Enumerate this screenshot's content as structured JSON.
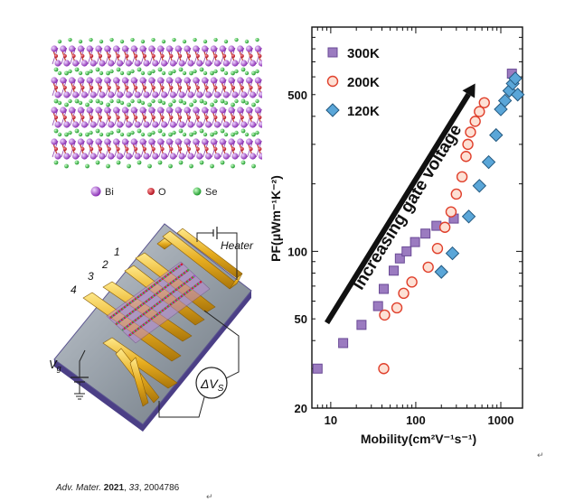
{
  "crystal_legend": [
    {
      "label": "Bi",
      "color": "#a64fc8"
    },
    {
      "label": "O",
      "color": "#cc2233"
    },
    {
      "label": "Se",
      "color": "#3cb044"
    }
  ],
  "device": {
    "heater_label": "Heater",
    "electrode_labels": [
      "1",
      "2",
      "3",
      "4"
    ],
    "gate_label": "V",
    "gate_sub": "g",
    "voltage_label": "ΔV",
    "voltage_sub": "S"
  },
  "citation": {
    "journal": "Adv. Mater.",
    "year": "2021",
    "volume": "33",
    "article": "2004786"
  },
  "paragraph_mark": "↵",
  "chart_data": {
    "type": "scatter",
    "xscale": "log",
    "yscale": "log",
    "xlim": [
      6,
      1800
    ],
    "ylim": [
      20,
      1000
    ],
    "xlabel": "Mobility(cm²V⁻¹s⁻¹)",
    "xtick_labels": [
      "10",
      "100",
      "1000"
    ],
    "xticks": [
      10,
      100,
      1000
    ],
    "ylabel": "PF(μWm⁻¹K⁻²)",
    "ytick_labels": [
      "20",
      "50",
      "100",
      "500"
    ],
    "yticks": [
      20,
      50,
      100,
      500
    ],
    "annotation": "Increasing gate voltage",
    "annotation_start": [
      9,
      48
    ],
    "annotation_end": [
      500,
      560
    ],
    "series": [
      {
        "name": "300K",
        "marker": "square",
        "color": "#9b7bc0",
        "edge": "#6a4a96",
        "x": [
          7,
          14,
          23,
          36,
          42,
          55,
          65,
          78,
          98,
          130,
          175,
          280,
          1350
        ],
        "y": [
          30,
          39,
          47,
          57,
          68,
          82,
          93,
          100,
          110,
          120,
          130,
          140,
          620
        ]
      },
      {
        "name": "200K",
        "marker": "circle",
        "color": "#fde1d5",
        "edge": "#e0402c",
        "x": [
          42,
          43,
          60,
          72,
          90,
          140,
          180,
          220,
          260,
          300,
          350,
          390,
          410,
          440,
          500,
          560,
          640
        ],
        "y": [
          30,
          52,
          56,
          65,
          73,
          85,
          103,
          128,
          150,
          180,
          215,
          265,
          300,
          340,
          380,
          420,
          460
        ]
      },
      {
        "name": "120K",
        "marker": "diamond",
        "color": "#5aa6d8",
        "edge": "#22577e",
        "x": [
          200,
          270,
          420,
          560,
          720,
          880,
          1000,
          1120,
          1260,
          1380,
          1480,
          1580
        ],
        "y": [
          81,
          98,
          143,
          196,
          250,
          330,
          430,
          470,
          520,
          560,
          590,
          500
        ]
      }
    ]
  }
}
